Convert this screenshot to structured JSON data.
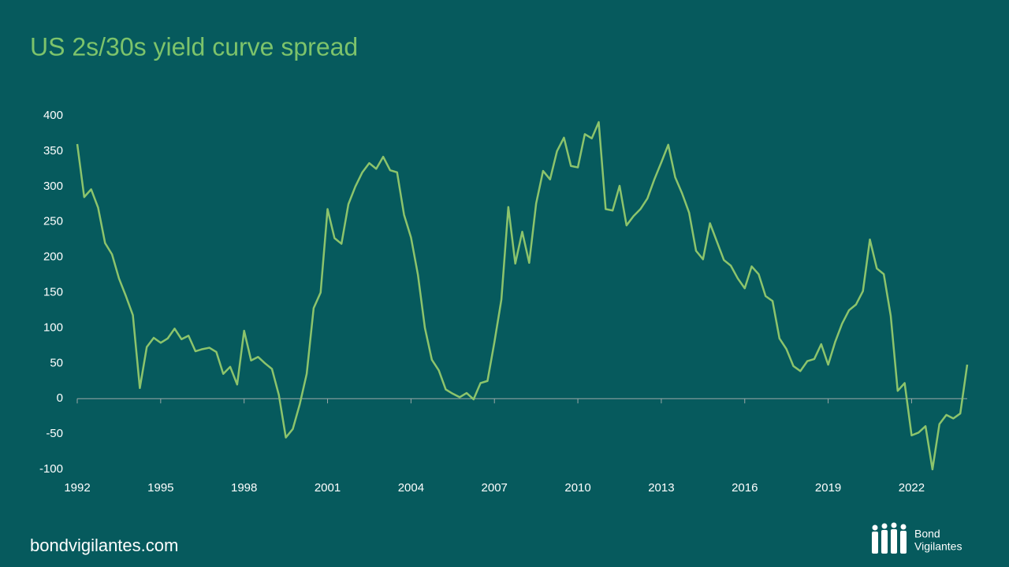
{
  "chart_data": {
    "type": "line",
    "title": "US 2s/30s yield curve spread",
    "color": "#8cc46c",
    "x": [
      1992,
      1992.25,
      1992.5,
      1992.75,
      1993,
      1993.25,
      1993.5,
      1993.75,
      1994,
      1994.25,
      1994.5,
      1994.75,
      1995,
      1995.25,
      1995.5,
      1995.75,
      1996,
      1996.25,
      1996.5,
      1996.75,
      1997,
      1997.25,
      1997.5,
      1997.75,
      1998,
      1998.25,
      1998.5,
      1998.75,
      1999,
      1999.25,
      1999.5,
      1999.75,
      2000,
      2000.25,
      2000.5,
      2000.75,
      2001,
      2001.25,
      2001.5,
      2001.75,
      2002,
      2002.25,
      2002.5,
      2002.75,
      2003,
      2003.25,
      2003.5,
      2003.75,
      2004,
      2004.25,
      2004.5,
      2004.75,
      2005,
      2005.25,
      2005.5,
      2005.75,
      2006,
      2006.25,
      2006.5,
      2006.75,
      2007,
      2007.25,
      2007.5,
      2007.75,
      2008,
      2008.25,
      2008.5,
      2008.75,
      2009,
      2009.25,
      2009.5,
      2009.75,
      2010,
      2010.25,
      2010.5,
      2010.75,
      2011,
      2011.25,
      2011.5,
      2011.75,
      2012,
      2012.25,
      2012.5,
      2012.75,
      2013,
      2013.25,
      2013.5,
      2013.75,
      2014,
      2014.25,
      2014.5,
      2014.75,
      2015,
      2015.25,
      2015.5,
      2015.75,
      2016,
      2016.25,
      2016.5,
      2016.75,
      2017,
      2017.25,
      2017.5,
      2017.75,
      2018,
      2018.25,
      2018.5,
      2018.75,
      2019,
      2019.25,
      2019.5,
      2019.75,
      2020,
      2020.25,
      2020.5,
      2020.75,
      2021,
      2021.25,
      2021.5,
      2021.75,
      2022,
      2022.25,
      2022.5,
      2022.75,
      2023,
      2023.25,
      2023.5,
      2023.75,
      2024
    ],
    "values": [
      360,
      285,
      296,
      270,
      220,
      204,
      170,
      145,
      118,
      15,
      73,
      86,
      79,
      85,
      99,
      84,
      89,
      67,
      70,
      72,
      66,
      35,
      45,
      20,
      96,
      54,
      59,
      50,
      42,
      5,
      -55,
      -43,
      -8,
      35,
      128,
      150,
      268,
      227,
      219,
      275,
      300,
      320,
      333,
      325,
      342,
      323,
      320,
      260,
      228,
      175,
      100,
      55,
      40,
      13,
      7,
      2,
      8,
      -1,
      22,
      25,
      80,
      140,
      271,
      191,
      236,
      192,
      276,
      322,
      310,
      350,
      369,
      329,
      327,
      374,
      368,
      391,
      268,
      266,
      301,
      245,
      258,
      268,
      283,
      310,
      334,
      359,
      313,
      290,
      263,
      209,
      197,
      248,
      222,
      196,
      188,
      170,
      156,
      187,
      176,
      145,
      138,
      85,
      70,
      46,
      39,
      53,
      56,
      77,
      48,
      80,
      106,
      125,
      133,
      152,
      225,
      184,
      176,
      117,
      11,
      22,
      -52,
      -48,
      -39,
      -100,
      -36,
      -23,
      -28,
      -21,
      48
    ],
    "xlim": [
      1992,
      2024
    ],
    "xticks": [
      1992,
      1995,
      1998,
      2001,
      2004,
      2007,
      2010,
      2013,
      2016,
      2019,
      2022
    ],
    "ylim": [
      -100,
      400
    ],
    "yticks": [
      -100,
      -50,
      0,
      50,
      100,
      150,
      200,
      250,
      300,
      350,
      400
    ],
    "grid": false
  },
  "footer": "bondvigilantes.com",
  "logo": [
    "Bond",
    "Vigilantes"
  ]
}
